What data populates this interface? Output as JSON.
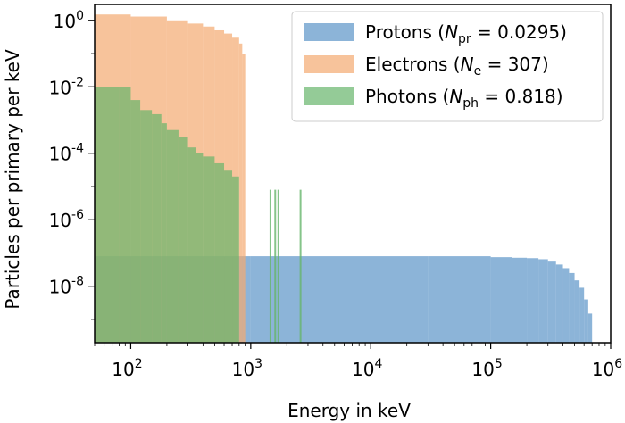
{
  "chart_data": {
    "type": "bar",
    "xlabel": "Energy in keV",
    "ylabel": "Particles per primary per keV",
    "xscale": "log",
    "yscale": "log",
    "xlim": [
      50,
      1000000
    ],
    "ylim": [
      2e-10,
      3
    ],
    "grid": false,
    "legend_position": "top-right",
    "x_ticks": [
      {
        "base": "10",
        "exp": "2",
        "value": 100
      },
      {
        "base": "10",
        "exp": "3",
        "value": 1000
      },
      {
        "base": "10",
        "exp": "4",
        "value": 10000
      },
      {
        "base": "10",
        "exp": "5",
        "value": 100000
      },
      {
        "base": "10",
        "exp": "6",
        "value": 1000000
      }
    ],
    "y_ticks": [
      {
        "base": "10",
        "exp": "0",
        "value": 1
      },
      {
        "base": "10",
        "exp": "-2",
        "value": 0.01
      },
      {
        "base": "10",
        "exp": "-4",
        "value": 0.0001
      },
      {
        "base": "10",
        "exp": "-6",
        "value": 1e-06
      },
      {
        "base": "10",
        "exp": "-8",
        "value": 1e-08
      }
    ],
    "series": [
      {
        "name": "Protons",
        "legend": {
          "prefix": "Protons (",
          "symbol": "N",
          "sub": "pr",
          "suffix": " = 0.0295)"
        },
        "color": "#5b94c8",
        "points": [
          [
            50,
            8e-08
          ],
          [
            1000,
            8e-08
          ],
          [
            30000,
            8e-08
          ],
          [
            100000,
            7.5e-08
          ],
          [
            150000,
            7.2e-08
          ],
          [
            200000,
            7e-08
          ],
          [
            250000,
            6.5e-08
          ],
          [
            300000,
            5.5e-08
          ],
          [
            350000,
            4.5e-08
          ],
          [
            400000,
            3.5e-08
          ],
          [
            450000,
            2.5e-08
          ],
          [
            500000,
            1.5e-08
          ],
          [
            550000,
            9e-09
          ],
          [
            600000,
            4e-09
          ],
          [
            650000,
            1.5e-09
          ],
          [
            700000,
            5e-10
          ]
        ]
      },
      {
        "name": "Electrons",
        "legend": {
          "prefix": "Electrons (",
          "symbol": "N",
          "sub": "e",
          "suffix": " = 307)"
        },
        "color": "#f4a971",
        "points": [
          [
            50,
            1.5
          ],
          [
            100,
            1.3
          ],
          [
            200,
            1.0
          ],
          [
            300,
            0.8
          ],
          [
            400,
            0.65
          ],
          [
            500,
            0.5
          ],
          [
            600,
            0.4
          ],
          [
            700,
            0.3
          ],
          [
            800,
            0.2
          ],
          [
            850,
            0.1
          ],
          [
            900,
            0.01
          ]
        ]
      },
      {
        "name": "Photons",
        "legend": {
          "prefix": "Photons (",
          "symbol": "N",
          "sub": "ph",
          "suffix": " = 0.818)"
        },
        "color": "#67b56b",
        "points": [
          [
            50,
            0.01
          ],
          [
            80,
            0.01
          ],
          [
            100,
            0.004
          ],
          [
            120,
            0.002
          ],
          [
            150,
            0.0015
          ],
          [
            180,
            0.0008
          ],
          [
            200,
            0.0005
          ],
          [
            250,
            0.0003
          ],
          [
            300,
            0.00015
          ],
          [
            350,
            0.0001
          ],
          [
            400,
            8e-05
          ],
          [
            500,
            5e-05
          ],
          [
            600,
            3e-05
          ],
          [
            700,
            2e-05
          ],
          [
            800,
            1e-05
          ]
        ],
        "lines": [
          {
            "energy": 1460,
            "value": 8e-06
          },
          {
            "energy": 1600,
            "value": 8e-06
          },
          {
            "energy": 1700,
            "value": 8e-06
          },
          {
            "energy": 2600,
            "value": 8e-06
          }
        ]
      }
    ]
  }
}
